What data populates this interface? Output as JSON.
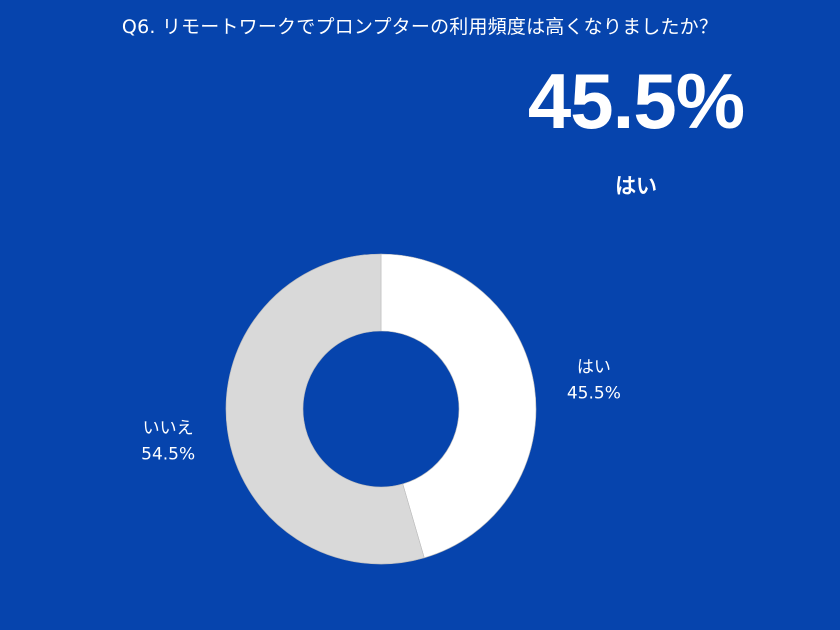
{
  "question": "Q6. リモートワークでプロンプターの利用頻度は高くなりましたか？",
  "highlight": {
    "value": "45.5%",
    "label": "はい"
  },
  "colors": {
    "background": "#0644AD",
    "yes": "#FFFFFF",
    "no": "#D9D9D9",
    "text": "#FFFFFF"
  },
  "chart_data": {
    "type": "pie",
    "donut": true,
    "title": "Q6. リモートワークでプロンプターの利用頻度は高くなりましたか？",
    "slices": [
      {
        "label": "はい",
        "value": 45.5,
        "value_label": "45.5%",
        "color": "#FFFFFF"
      },
      {
        "label": "いいえ",
        "value": 54.5,
        "value_label": "54.5%",
        "color": "#D9D9D9"
      }
    ],
    "start_angle": "12 o'clock",
    "direction": "clockwise",
    "label_placement": "outside"
  }
}
